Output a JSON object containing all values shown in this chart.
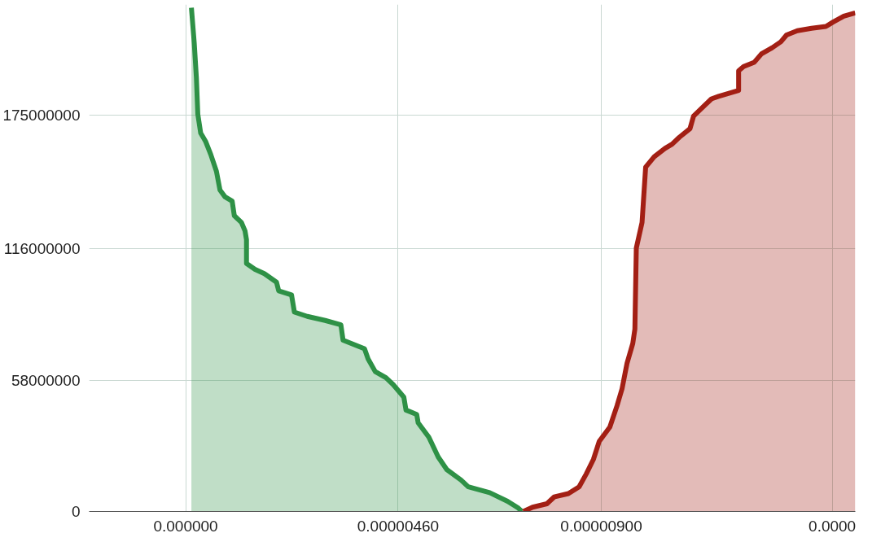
{
  "chart_data": {
    "type": "area",
    "xlim": [
      -2.09e-06,
      1.45e-05
    ],
    "ylim": [
      0,
      224000000
    ],
    "xticks": [
      {
        "value": 0,
        "label": "0.000000"
      },
      {
        "value": 4.6e-06,
        "label": "0.00000460"
      },
      {
        "value": 9e-06,
        "label": "0.00000900"
      },
      {
        "value": 1.4e-05,
        "label": "0.0000"
      }
    ],
    "yticks": [
      0,
      58000000,
      116000000,
      175000000
    ],
    "grid": true,
    "series": [
      {
        "color": "#2e9146",
        "x": [
          1.24e-07,
          1.86e-07,
          2.32e-07,
          2.63e-07,
          3.25e-07,
          4.34e-07,
          5.42e-07,
          6.66e-07,
          7.43e-07,
          8.52e-07,
          1.007e-06,
          1.053e-06,
          1.208e-06,
          1.286e-06,
          1.317e-06,
          1.317e-06,
          1.502e-06,
          1.704e-06,
          1.967e-06,
          2.014e-06,
          2.292e-06,
          2.354e-06,
          2.633e-06,
          3.02e-06,
          3.361e-06,
          3.408e-06,
          3.872e-06,
          3.95e-06,
          4.105e-06,
          4.337e-06,
          4.492e-06,
          4.724e-06,
          4.771e-06,
          5.003e-06,
          5.034e-06,
          5.266e-06,
          5.468e-06,
          5.654e-06,
          5.963e-06,
          6.118e-06,
          6.583e-06,
          6.97e-06,
          7.203e-06,
          7.28e-06
        ],
        "values": [
          222600000,
          206800000,
          191700000,
          175500000,
          167200000,
          163400000,
          157800000,
          150300000,
          142000000,
          139000000,
          137100000,
          130700000,
          127700000,
          123900000,
          120100000,
          109600000,
          107000000,
          105100000,
          101300000,
          97500000,
          95700000,
          88100000,
          86200000,
          84400000,
          82500000,
          75700000,
          71900000,
          67400000,
          61800000,
          59100000,
          56100000,
          50500000,
          44800000,
          42900000,
          39200000,
          32800000,
          24100000,
          18500000,
          13900000,
          10900000,
          8300000,
          4500000,
          1500000,
          0
        ]
      },
      {
        "color": "#a31f14",
        "x": [
          7.311e-06,
          7.512e-06,
          7.822e-06,
          7.977e-06,
          8.287e-06,
          8.519e-06,
          8.674e-06,
          8.829e-06,
          8.953e-06,
          9.185e-06,
          9.34e-06,
          9.449e-06,
          9.557e-06,
          9.681e-06,
          9.727e-06,
          9.758e-06,
          9.882e-06,
          9.96e-06,
          1.0145e-05,
          1.0378e-05,
          1.0533e-05,
          1.0688e-05,
          1.092e-05,
          1.0998e-05,
          1.123e-05,
          1.1385e-05,
          1.154e-05,
          1.1973e-05,
          1.1973e-05,
          1.2082e-05,
          1.2314e-05,
          1.2469e-05,
          1.2701e-05,
          1.2887e-05,
          1.3011e-05,
          1.3244e-05,
          1.3553e-05,
          1.3863e-05,
          1.4018e-05,
          1.425e-05,
          1.4498e-05
        ],
        "values": [
          0,
          1900000,
          3400000,
          6400000,
          7900000,
          10900000,
          16600000,
          23000000,
          30900000,
          37300000,
          46700000,
          54200000,
          65500000,
          74200000,
          80600000,
          116400000,
          127700000,
          152100000,
          156700000,
          160400000,
          162300000,
          165300000,
          169100000,
          174700000,
          179300000,
          182300000,
          183400000,
          186000000,
          194700000,
          196600000,
          198500000,
          202200000,
          204900000,
          207500000,
          210500000,
          212400000,
          213500000,
          214300000,
          216200000,
          218800000,
          220300000
        ]
      }
    ]
  }
}
